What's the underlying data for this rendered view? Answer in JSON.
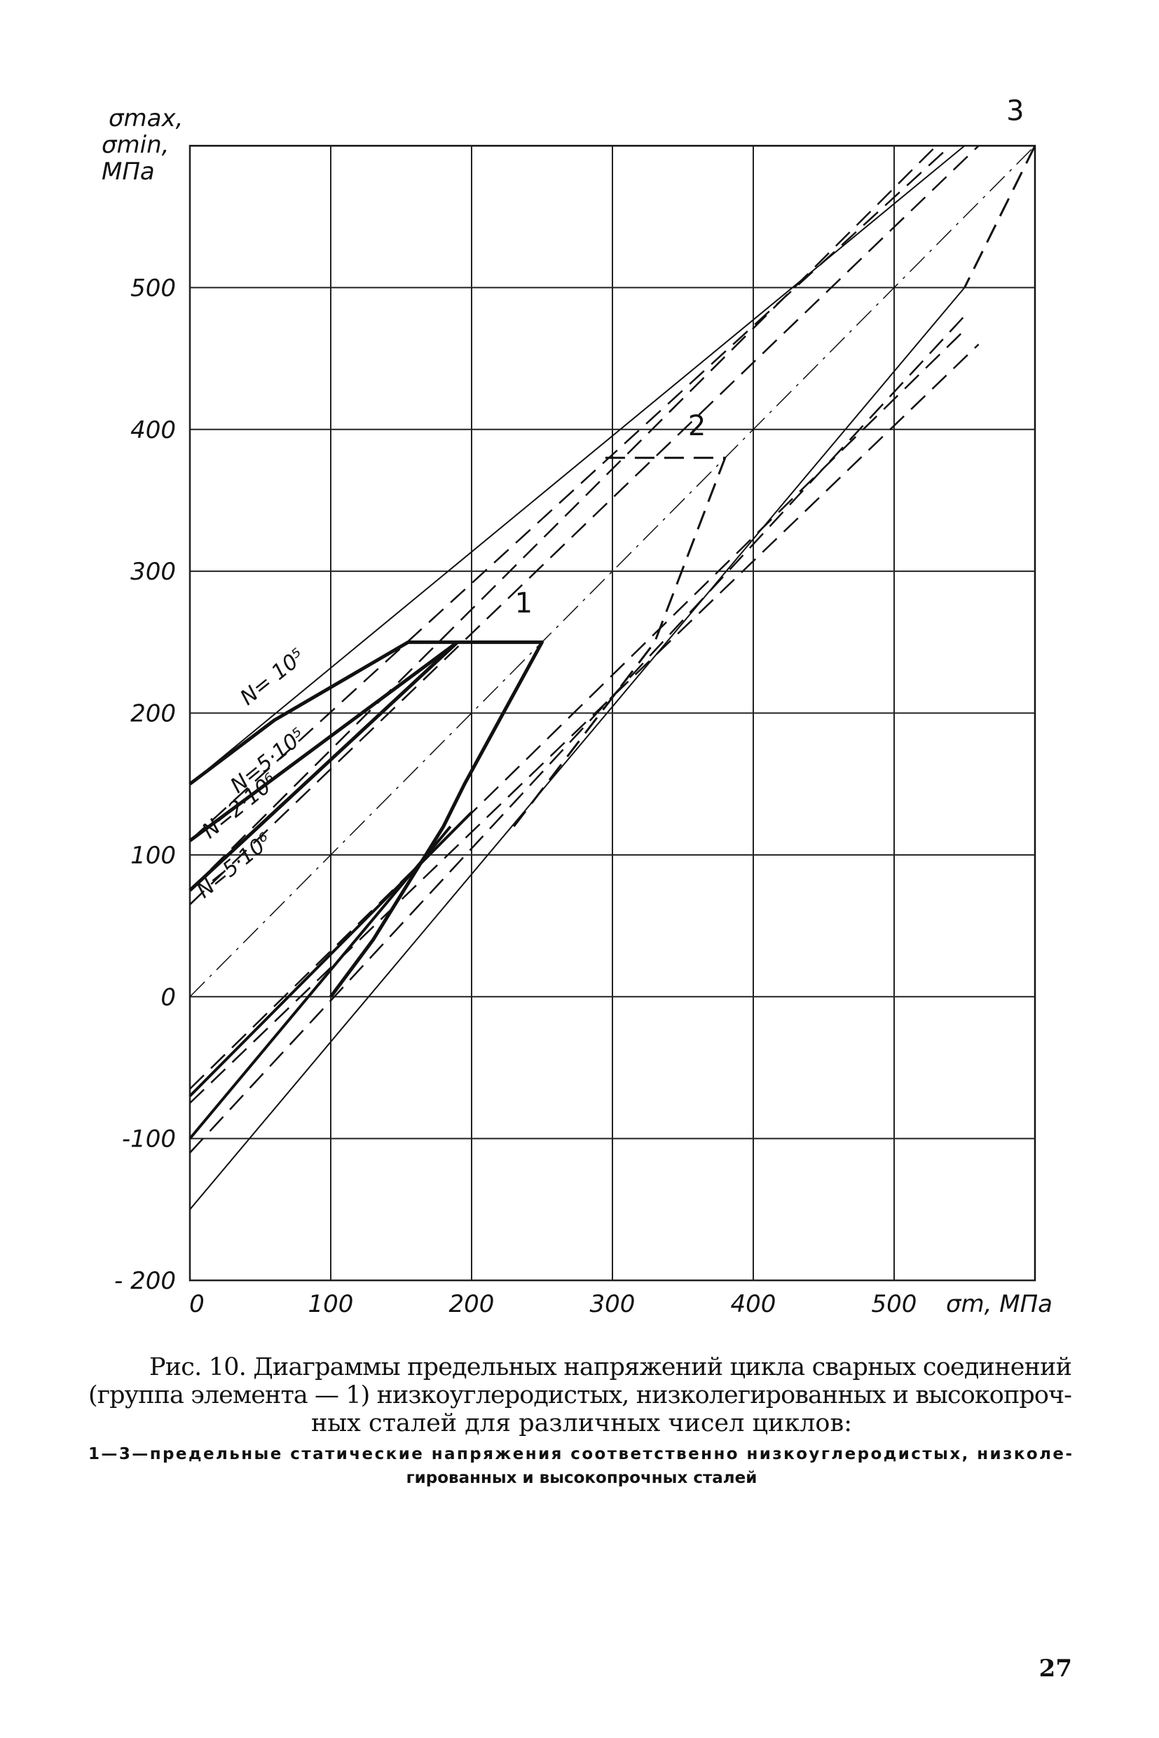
{
  "chart_data": {
    "type": "line",
    "ylabel": [
      "σmax,",
      "σmin,",
      "МПа"
    ],
    "xlabel": "σm, МПа",
    "xlim": [
      0,
      600
    ],
    "ylim": [
      -200,
      600
    ],
    "xticks": [
      0,
      100,
      200,
      300,
      400,
      500
    ],
    "yticks": [
      {
        "value": -200,
        "label": "- 200"
      },
      {
        "value": -100,
        "label": "-100"
      },
      0,
      100,
      200,
      300,
      400,
      500
    ],
    "grid": true,
    "series": [
      {
        "color": "#111",
        "style": "solid",
        "width": 2,
        "x": [
          0,
          550
        ],
        "values": [
          150,
          600
        ]
      },
      {
        "color": "#111",
        "style": "solid",
        "width": 5,
        "x": [
          0,
          60,
          155
        ],
        "values": [
          150,
          195,
          250
        ]
      },
      {
        "color": "#111",
        "style": "solid",
        "width": 5,
        "x": [
          155,
          250,
          195,
          180,
          130,
          100
        ],
        "values": [
          250,
          250,
          150,
          120,
          40,
          0
        ]
      },
      {
        "color": "#111",
        "style": "solid",
        "width": 2,
        "x": [
          0,
          550
        ],
        "values": [
          -150,
          500
        ]
      },
      {
        "color": "#111",
        "style": "dashed",
        "width": 2.5,
        "x": [
          0,
          540
        ],
        "values": [
          110,
          600
        ]
      },
      {
        "color": "#111",
        "style": "solid",
        "width": 5,
        "x": [
          0,
          190
        ],
        "values": [
          110,
          250
        ]
      },
      {
        "color": "#111",
        "style": "dashed",
        "width": 2.5,
        "x": [
          0,
          530
        ],
        "values": [
          75,
          600
        ]
      },
      {
        "color": "#111",
        "style": "solid",
        "width": 5,
        "x": [
          0,
          190
        ],
        "values": [
          75,
          250
        ]
      },
      {
        "color": "#111",
        "style": "dashed",
        "width": 2.5,
        "x": [
          0,
          560
        ],
        "values": [
          65,
          600
        ]
      },
      {
        "color": "#111",
        "style": "dashed",
        "width": 2.5,
        "x": [
          0,
          550
        ],
        "values": [
          -110,
          480
        ]
      },
      {
        "color": "#111",
        "style": "dashed",
        "width": 2.5,
        "x": [
          0,
          560
        ],
        "values": [
          -75,
          460
        ]
      },
      {
        "color": "#111",
        "style": "dashed",
        "width": 2.5,
        "x": [
          0,
          550
        ],
        "values": [
          -65,
          470
        ]
      },
      {
        "color": "#111",
        "style": "solid",
        "width": 4,
        "x": [
          0,
          185
        ],
        "values": [
          -100,
          120
        ]
      },
      {
        "color": "#111",
        "style": "solid",
        "width": 4,
        "x": [
          0,
          200
        ],
        "values": [
          -70,
          130
        ]
      },
      {
        "color": "#111",
        "style": "dashdot",
        "width": 1.5,
        "x": [
          0,
          600
        ],
        "values": [
          0,
          600
        ]
      },
      {
        "color": "#111",
        "style": "dashed",
        "width": 3,
        "x": [
          295,
          380,
          330,
          230
        ],
        "values": [
          380,
          380,
          250,
          120
        ]
      },
      {
        "color": "#111",
        "style": "dashed",
        "width": 3,
        "x": [
          600,
          550
        ],
        "values": [
          600,
          500
        ]
      }
    ],
    "curve_labels": [
      {
        "text": "N= 10⁵",
        "x": 41,
        "y": 205
      },
      {
        "text": "N=5·10⁵",
        "x": 34,
        "y": 143
      },
      {
        "text": "N=2·10⁶",
        "x": 14,
        "y": 111
      },
      {
        "text": "N=5·10⁶",
        "x": 10,
        "y": 69
      }
    ],
    "static_labels": [
      {
        "text": "1",
        "x": 237,
        "y": 271
      },
      {
        "text": "2",
        "x": 360,
        "y": 396
      },
      {
        "text": "3",
        "x": 586,
        "y": 618
      }
    ]
  },
  "caption": {
    "lines": [
      "Рис. 10. Диаграммы предельных напряжений цикла сварных соединений",
      "(группа элемента — 1) низкоуглеродистых, низколегированных и высокопроч-",
      "ных сталей для различных чисел циклов:"
    ],
    "note": [
      "1—3—предельные статические напряжения соответственно низкоуглеродистых, низколе-",
      "гированных и высокопрочных сталей"
    ]
  },
  "page_number": "27"
}
